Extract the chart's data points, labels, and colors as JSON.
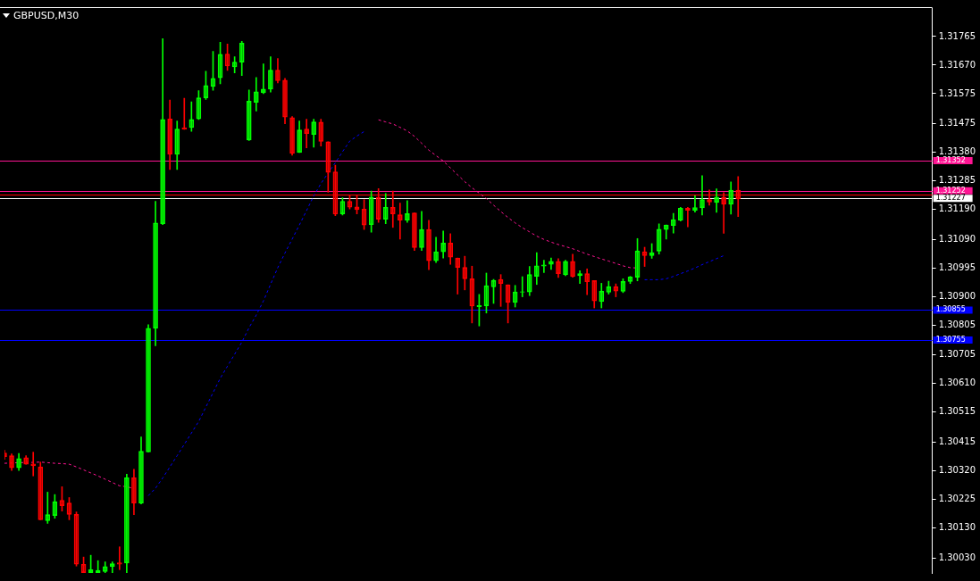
{
  "chart_data": {
    "type": "candlestick",
    "title": "GBPUSD,M30",
    "categories": [
      null,
      null,
      null,
      null,
      null,
      null,
      null,
      null,
      null,
      null,
      null,
      null,
      null,
      null,
      null,
      null,
      null,
      null,
      null,
      null,
      null,
      null,
      null,
      null,
      null,
      null,
      null,
      null,
      null,
      null,
      null,
      null,
      null,
      null,
      null,
      null,
      null,
      null,
      null,
      null,
      null,
      null,
      null,
      null,
      null,
      null,
      null,
      null,
      null,
      null,
      null,
      null,
      null,
      null,
      null,
      null,
      null,
      null,
      null,
      null,
      null,
      null,
      null,
      null,
      null,
      null,
      null,
      null,
      null,
      null,
      null,
      null,
      null,
      null,
      null,
      null,
      null,
      null,
      null,
      null,
      null,
      null,
      null,
      null,
      null,
      null,
      null,
      null,
      null,
      null,
      null,
      null,
      null,
      null,
      null,
      null,
      null,
      null,
      null,
      null,
      null,
      null,
      null,
      null,
      null,
      null,
      null,
      null,
      null,
      null,
      null,
      null,
      null,
      null,
      null,
      null,
      null,
      null,
      null,
      null,
      null,
      null,
      null,
      null,
      null,
      null,
      null,
      null,
      null,
      null
    ],
    "ohlc": [
      [
        1.30379,
        1.30388,
        1.30358,
        1.30367
      ],
      [
        1.3037,
        1.30376,
        1.30321,
        1.3033
      ],
      [
        1.3033,
        1.30378,
        1.30321,
        1.30361
      ],
      [
        1.30364,
        1.3037,
        1.30342,
        1.30342
      ],
      [
        1.30343,
        1.30382,
        1.30303,
        1.30337
      ],
      [
        1.30333,
        1.30349,
        1.30157,
        1.30157
      ],
      [
        1.30154,
        1.30249,
        1.30145,
        1.30174
      ],
      [
        1.30171,
        1.30241,
        1.30162,
        1.30217
      ],
      [
        1.30222,
        1.30267,
        1.30186,
        1.30204
      ],
      [
        1.30213,
        1.30231,
        1.30157,
        1.30175
      ],
      [
        1.30175,
        1.30183,
        1.30003,
        1.30009
      ],
      [
        1.30009,
        1.30033,
        1.29981,
        1.29981
      ],
      [
        1.29981,
        1.30039,
        1.29981,
        1.29991
      ],
      [
        1.29981,
        1.30021,
        1.29981,
        1.29989
      ],
      [
        1.29985,
        1.30017,
        1.29981,
        1.30001
      ],
      [
        1.30001,
        1.30017,
        1.29981,
        1.30011
      ],
      [
        1.30014,
        1.30067,
        1.29991,
        1.30009
      ],
      [
        1.30013,
        1.30309,
        1.29981,
        1.30297
      ],
      [
        1.30297,
        1.30325,
        1.30174,
        1.30213
      ],
      [
        1.30212,
        1.30433,
        1.3021,
        1.30385
      ],
      [
        1.30383,
        1.30806,
        1.30383,
        1.30794
      ],
      [
        1.30794,
        1.31217,
        1.30736,
        1.31145
      ],
      [
        1.31142,
        1.31758,
        1.31139,
        1.31489
      ],
      [
        1.31491,
        1.31554,
        1.31323,
        1.31373
      ],
      [
        1.31373,
        1.31484,
        1.31323,
        1.31457
      ],
      [
        1.31462,
        1.3156,
        1.31456,
        1.31456
      ],
      [
        1.31462,
        1.31548,
        1.3145,
        1.31489
      ],
      [
        1.31491,
        1.31585,
        1.31489,
        1.31561
      ],
      [
        1.31561,
        1.3165,
        1.31556,
        1.31602
      ],
      [
        1.31599,
        1.31716,
        1.31586,
        1.31626
      ],
      [
        1.31628,
        1.31746,
        1.31608,
        1.31706
      ],
      [
        1.31707,
        1.3174,
        1.31652,
        1.31667
      ],
      [
        1.31664,
        1.31698,
        1.31644,
        1.3168
      ],
      [
        1.3168,
        1.31749,
        1.31635,
        1.31743
      ],
      [
        1.31421,
        1.31587,
        1.31419,
        1.3155
      ],
      [
        1.31546,
        1.31629,
        1.31517,
        1.31581
      ],
      [
        1.31578,
        1.31674,
        1.31575,
        1.3159
      ],
      [
        1.3159,
        1.31698,
        1.3158,
        1.31653
      ],
      [
        1.31653,
        1.31692,
        1.31611,
        1.31618
      ],
      [
        1.3162,
        1.31626,
        1.31475,
        1.31497
      ],
      [
        1.31495,
        1.31499,
        1.3137,
        1.31376
      ],
      [
        1.31379,
        1.31484,
        1.31379,
        1.31454
      ],
      [
        1.31457,
        1.3149,
        1.31395,
        1.31442
      ],
      [
        1.31439,
        1.3149,
        1.31397,
        1.31481
      ],
      [
        1.3148,
        1.3149,
        1.31401,
        1.31416
      ],
      [
        1.31415,
        1.31415,
        1.31247,
        1.31313
      ],
      [
        1.31315,
        1.31337,
        1.31169,
        1.31174
      ],
      [
        1.31175,
        1.31229,
        1.31171,
        1.31217
      ],
      [
        1.31217,
        1.31235,
        1.31191,
        1.31197
      ],
      [
        1.31198,
        1.31235,
        1.31175,
        1.31189
      ],
      [
        1.31191,
        1.31223,
        1.31123,
        1.31138
      ],
      [
        1.31139,
        1.31251,
        1.31114,
        1.31231
      ],
      [
        1.31231,
        1.31259,
        1.31147,
        1.31157
      ],
      [
        1.31157,
        1.31243,
        1.31142,
        1.31197
      ],
      [
        1.31197,
        1.31251,
        1.3113,
        1.31175
      ],
      [
        1.31172,
        1.31211,
        1.31091,
        1.31154
      ],
      [
        1.31154,
        1.31219,
        1.31147,
        1.31176
      ],
      [
        1.31178,
        1.31178,
        1.31053,
        1.31063
      ],
      [
        1.31063,
        1.31183,
        1.31053,
        1.31123
      ],
      [
        1.31123,
        1.31154,
        1.30989,
        1.31019
      ],
      [
        1.31019,
        1.31097,
        1.31013,
        1.31049
      ],
      [
        1.31049,
        1.31118,
        1.31028,
        1.31078
      ],
      [
        1.31078,
        1.31109,
        1.31007,
        1.31031
      ],
      [
        1.31028,
        1.31028,
        1.30908,
        1.30997
      ],
      [
        1.30997,
        1.31034,
        1.30922,
        1.30959
      ],
      [
        1.30959,
        1.31001,
        1.30812,
        1.30868
      ],
      [
        1.30866,
        1.30907,
        1.30802,
        1.3087
      ],
      [
        1.30869,
        1.30978,
        1.30845,
        1.30936
      ],
      [
        1.30932,
        1.30957,
        1.30877,
        1.30954
      ],
      [
        1.30957,
        1.30973,
        1.30867,
        1.30943
      ],
      [
        1.30939,
        1.30939,
        1.30812,
        1.3088
      ],
      [
        1.3088,
        1.30937,
        1.30865,
        1.30915
      ],
      [
        1.30914,
        1.30966,
        1.30899,
        1.30916
      ],
      [
        1.30915,
        1.31,
        1.30903,
        1.30973
      ],
      [
        1.30967,
        1.31046,
        1.3094,
        1.31002
      ],
      [
        1.31001,
        1.31021,
        1.3098,
        1.31005
      ],
      [
        1.31007,
        1.31028,
        1.3099,
        1.31017
      ],
      [
        1.31017,
        1.31026,
        1.30963,
        1.30976
      ],
      [
        1.30972,
        1.31021,
        1.30969,
        1.31017
      ],
      [
        1.31017,
        1.31041,
        1.30964,
        1.30966
      ],
      [
        1.30969,
        1.30986,
        1.30943,
        1.30976
      ],
      [
        1.30976,
        1.30992,
        1.30906,
        1.30949
      ],
      [
        1.30953,
        1.30953,
        1.30862,
        1.30885
      ],
      [
        1.30883,
        1.30944,
        1.30862,
        1.30918
      ],
      [
        1.30914,
        1.30951,
        1.30908,
        1.30933
      ],
      [
        1.30933,
        1.30942,
        1.30899,
        1.30918
      ],
      [
        1.30917,
        1.30959,
        1.30913,
        1.3095
      ],
      [
        1.3095,
        1.30967,
        1.30943,
        1.30965
      ],
      [
        1.30964,
        1.31093,
        1.30952,
        1.31052
      ],
      [
        1.31049,
        1.31064,
        1.31,
        1.31036
      ],
      [
        1.31036,
        1.31076,
        1.31027,
        1.31046
      ],
      [
        1.31051,
        1.31142,
        1.31041,
        1.31124
      ],
      [
        1.31123,
        1.31138,
        1.31091,
        1.31138
      ],
      [
        1.31136,
        1.31177,
        1.31111,
        1.31156
      ],
      [
        1.31154,
        1.31197,
        1.31151,
        1.31194
      ],
      [
        1.31194,
        1.31197,
        1.31132,
        1.31187
      ],
      [
        1.31187,
        1.31235,
        1.31181,
        1.31196
      ],
      [
        1.31195,
        1.31302,
        1.31171,
        1.31223
      ],
      [
        1.31223,
        1.31255,
        1.31204,
        1.31214
      ],
      [
        1.31213,
        1.31258,
        1.3118,
        1.31231
      ],
      [
        1.31231,
        1.31246,
        1.3111,
        1.31207
      ],
      [
        1.31207,
        1.31281,
        1.31174,
        1.31254
      ],
      [
        1.31254,
        1.31299,
        1.31166,
        1.31225
      ],
      null,
      null,
      null,
      null,
      null,
      null,
      null,
      null,
      null,
      null,
      null,
      null,
      null,
      null,
      null,
      null,
      null,
      null,
      null,
      null,
      null,
      null,
      null,
      null,
      null,
      null,
      null
    ],
    "colors": [
      "#ff0000",
      "#ff0000",
      "#00ff00",
      "#ff0000",
      "#ff0000",
      "#ff0000",
      "#00ff00",
      "#00ff00",
      "#ff0000",
      "#ff0000",
      "#ff0000",
      "#ff0000",
      "#00ff00",
      "#00ff00",
      "#00ff00",
      "#00ff00",
      "#ff0000",
      "#00ff00",
      "#ff0000",
      "#00ff00",
      "#00ff00",
      "#00ff00",
      "#00ff00",
      "#ff0000",
      "#00ff00",
      "#ff0000",
      "#00ff00",
      "#00ff00",
      "#00ff00",
      "#00ff00",
      "#00ff00",
      "#ff0000",
      "#00ff00",
      "#00ff00",
      "#00ff00",
      "#00ff00",
      "#00ff00",
      "#00ff00",
      "#ff0000",
      "#ff0000",
      "#ff0000",
      "#00ff00",
      "#ff0000",
      "#00ff00",
      "#ff0000",
      "#ff0000",
      "#ff0000",
      "#00ff00",
      "#ff0000",
      "#ff0000",
      "#ff0000",
      "#00ff00",
      "#ff0000",
      "#00ff00",
      "#ff0000",
      "#ff0000",
      "#00ff00",
      "#ff0000",
      "#00ff00",
      "#ff0000",
      "#00ff00",
      "#00ff00",
      "#ff0000",
      "#ff0000",
      "#ff0000",
      "#ff0000",
      "#00ff00",
      "#00ff00",
      "#00ff00",
      "#ff0000",
      "#ff0000",
      "#00ff00",
      "#00ff00",
      "#00ff00",
      "#00ff00",
      "#00ff00",
      "#00ff00",
      "#ff0000",
      "#00ff00",
      "#ff0000",
      "#00ff00",
      "#ff0000",
      "#ff0000",
      "#00ff00",
      "#00ff00",
      "#ff0000",
      "#00ff00",
      "#00ff00",
      "#00ff00",
      "#ff0000",
      "#00ff00",
      "#00ff00",
      "#00ff00",
      "#00ff00",
      "#00ff00",
      "#ff0000",
      "#00ff00",
      "#00ff00",
      "#ff0000",
      "#00ff00",
      "#ff0000",
      "#00ff00",
      "#ff0000",
      null,
      null,
      null,
      null,
      null,
      null,
      null,
      null,
      null,
      null,
      null,
      null,
      null,
      null,
      null,
      null,
      null,
      null,
      null,
      null,
      null,
      null,
      null,
      null,
      null,
      null,
      null
    ],
    "series": [
      {
        "type": "line",
        "color": "#ff1493",
        "values": [
          1.30345,
          1.30346,
          1.30347,
          1.30348,
          1.30348,
          1.30349,
          1.30347,
          1.30345,
          1.30344,
          1.30342,
          1.30333,
          1.30323,
          1.30313,
          1.30303,
          1.30292,
          1.30281,
          1.3027,
          1.30267,
          1.30261,
          null,
          null,
          null,
          null,
          null,
          null,
          null,
          null,
          null,
          null,
          null,
          null,
          null,
          null,
          null,
          null,
          null,
          null,
          null,
          null,
          null,
          null,
          null,
          null,
          null,
          null,
          null,
          null,
          null,
          null,
          null,
          null,
          null,
          1.31488,
          1.31481,
          1.31474,
          1.31463,
          1.31451,
          1.31433,
          1.3141,
          1.31387,
          1.31369,
          1.31351,
          1.31328,
          1.31305,
          1.31282,
          1.31262,
          1.31244,
          1.31226,
          1.31204,
          1.31183,
          1.31163,
          1.31145,
          1.31129,
          1.31115,
          1.31101,
          1.3109,
          1.31081,
          1.31073,
          1.31066,
          1.31059,
          1.3105,
          1.31041,
          1.31033,
          1.31025,
          1.31018,
          1.3101,
          1.31002,
          1.30996,
          1.30995,
          null,
          null,
          null,
          null,
          null,
          null,
          null,
          null,
          null,
          null,
          null,
          null,
          null,
          null,
          null,
          null,
          null,
          null,
          null,
          null,
          null,
          null,
          null,
          null,
          null,
          null,
          null,
          null,
          null,
          null,
          null,
          null,
          null,
          null,
          null,
          null,
          null,
          null,
          null,
          null,
          null
        ]
      },
      {
        "type": "line",
        "color": "#0000ff",
        "values": [
          null,
          null,
          null,
          null,
          null,
          null,
          null,
          null,
          null,
          null,
          null,
          null,
          null,
          null,
          null,
          null,
          null,
          null,
          null,
          null,
          1.30237,
          1.30262,
          1.30296,
          1.30333,
          1.3037,
          1.30408,
          1.30446,
          1.30484,
          1.30532,
          1.3058,
          1.30628,
          1.30668,
          1.30708,
          1.30748,
          1.30796,
          1.30838,
          1.30885,
          1.30941,
          1.30996,
          1.31045,
          1.31091,
          1.31138,
          1.31186,
          1.31235,
          1.31276,
          1.31311,
          1.31345,
          1.31382,
          1.31417,
          1.31434,
          1.31449,
          null,
          null,
          null,
          null,
          null,
          null,
          null,
          null,
          null,
          null,
          null,
          null,
          null,
          null,
          null,
          null,
          null,
          null,
          null,
          null,
          null,
          null,
          null,
          null,
          null,
          null,
          null,
          null,
          null,
          null,
          null,
          null,
          null,
          null,
          null,
          null,
          null,
          null,
          1.30956,
          1.30956,
          1.30956,
          1.30959,
          1.30967,
          1.30976,
          1.30985,
          1.30995,
          1.31006,
          1.31016,
          1.31026,
          1.31036,
          null,
          null,
          null,
          null,
          null,
          null,
          null,
          null,
          null,
          null,
          null,
          null,
          null,
          null,
          null,
          null,
          null,
          null,
          null,
          null,
          null,
          null,
          null,
          null,
          null,
          null,
          null,
          null,
          null
        ]
      }
    ],
    "line_style": "dashed",
    "ylim": [
      1.2998,
      1.3186
    ],
    "yticks": [
      1.31765,
      {
        "value": 1.3167,
        "label": "1.31670"
      },
      1.31575,
      1.31475,
      {
        "value": 1.3138,
        "label": "1.31380"
      },
      1.31285,
      {
        "value": 1.3119,
        "label": "1.31190"
      },
      {
        "value": 1.3109,
        "label": "1.31090"
      },
      1.30995,
      {
        "value": 1.309,
        "label": "1.30900"
      },
      1.30805,
      1.30705,
      {
        "value": 1.3061,
        "label": "1.30610"
      },
      1.30515,
      1.30415,
      {
        "value": 1.3032,
        "label": "1.30320"
      },
      1.30225,
      {
        "value": 1.3013,
        "label": "1.30130"
      },
      {
        "value": 1.3003,
        "label": "1.30030"
      }
    ],
    "ref_lines": [
      {
        "axis": "y",
        "value": 1.31352,
        "label": "1.31352",
        "color": "#ff1493"
      },
      {
        "axis": "y",
        "value": 1.31252,
        "label": "1.31252",
        "color": "#ff1493"
      },
      {
        "axis": "y",
        "value": 1.3124,
        "color": "#ff0000"
      },
      {
        "axis": "y",
        "value": 1.31227,
        "label": "1.31227",
        "color": "#ffffff"
      },
      {
        "axis": "y",
        "value": 1.30855,
        "label": "1.30855",
        "color": "#0000ff"
      },
      {
        "axis": "y",
        "value": 1.30755,
        "label": "1.30755",
        "color": "#0000ff"
      }
    ],
    "legend": false
  }
}
